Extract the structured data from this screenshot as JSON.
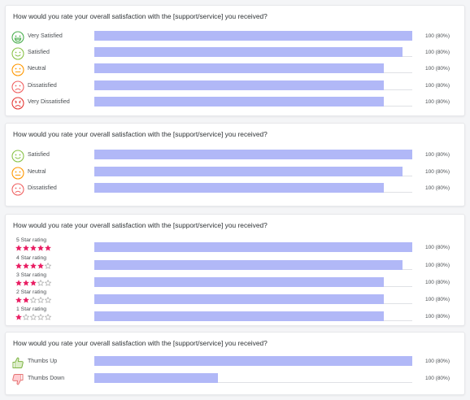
{
  "cards": [
    {
      "question": "How would you rate your overall satisfaction with the [support/service] you received?",
      "rows": [
        {
          "label": "Very Satisfied",
          "icon": "very-satisfied-face-icon",
          "color": "#4caf50",
          "fill": 1.0,
          "value": "100 (80%)"
        },
        {
          "label": "Satisfied",
          "icon": "satisfied-face-icon",
          "color": "#8bc34a",
          "fill": 0.97,
          "value": "100 (80%)"
        },
        {
          "label": "Neutral",
          "icon": "neutral-face-icon",
          "color": "#ff9800",
          "fill": 0.91,
          "value": "100 (80%)"
        },
        {
          "label": "Dissatisfied",
          "icon": "dissatisfied-face-icon",
          "color": "#f06262",
          "fill": 0.91,
          "value": "100 (80%)"
        },
        {
          "label": "Very Dissatisfied",
          "icon": "very-dissatisfied-face-icon",
          "color": "#e53935",
          "fill": 0.91,
          "value": "100 (80%)"
        }
      ]
    },
    {
      "question": "How would you rate your overall satisfaction with the [support/service] you received?",
      "rows": [
        {
          "label": "Satisfied",
          "icon": "satisfied-face-icon",
          "color": "#8bc34a",
          "fill": 1.0,
          "value": "100 (80%)"
        },
        {
          "label": "Neutral",
          "icon": "neutral-face-icon",
          "color": "#ff9800",
          "fill": 0.97,
          "value": "100 (80%)"
        },
        {
          "label": "Dissatisfied",
          "icon": "dissatisfied-face-icon",
          "color": "#f06262",
          "fill": 0.91,
          "value": "100 (80%)"
        }
      ]
    },
    {
      "question": "How would you rate your overall satisfaction with the [support/service] you received?",
      "rows": [
        {
          "label": "5 Star rating",
          "stars": 5,
          "fill": 1.0,
          "value": "100 (80%)"
        },
        {
          "label": "4 Star rating",
          "stars": 4,
          "fill": 0.97,
          "value": "100 (80%)"
        },
        {
          "label": "3 Star rating",
          "stars": 3,
          "fill": 0.91,
          "value": "100 (80%)"
        },
        {
          "label": "2 Star rating",
          "stars": 2,
          "fill": 0.91,
          "value": "100 (80%)"
        },
        {
          "label": "1 Star rating",
          "stars": 1,
          "fill": 0.91,
          "value": "100 (80%)"
        }
      ]
    },
    {
      "question": "How would you rate your overall satisfaction with the [support/service] you received?",
      "rows": [
        {
          "label": "Thumbs Up",
          "icon": "thumbs-up-icon",
          "color": "#7cb342",
          "fill": 1.0,
          "value": "100 (80%)"
        },
        {
          "label": "Thumbs Down",
          "icon": "thumbs-down-icon",
          "color": "#e57373",
          "fill": 0.39,
          "value": "100 (80%)"
        }
      ]
    }
  ],
  "colors": {
    "bar": "#b1b8f7",
    "star": "#e91e63",
    "star_empty": "#9e9e9e"
  }
}
